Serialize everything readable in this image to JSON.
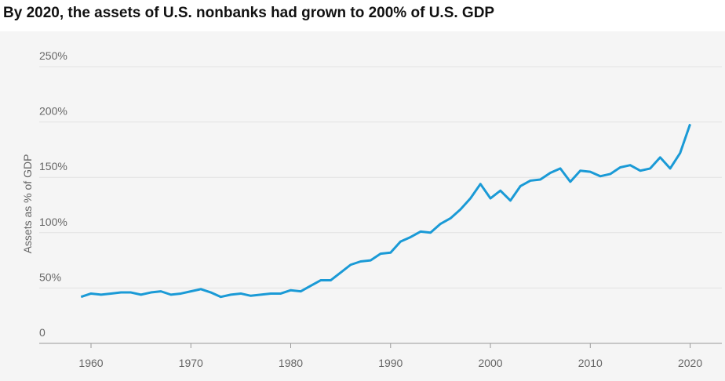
{
  "chart_data": {
    "type": "line",
    "title": "By 2020, the assets of U.S. nonbanks had grown to 200% of U.S. GDP",
    "y_label": "Assets as % of GDP",
    "x": [
      1959,
      1960,
      1961,
      1962,
      1963,
      1964,
      1965,
      1966,
      1967,
      1968,
      1969,
      1970,
      1971,
      1972,
      1973,
      1974,
      1975,
      1976,
      1977,
      1978,
      1979,
      1980,
      1981,
      1982,
      1983,
      1984,
      1985,
      1986,
      1987,
      1988,
      1989,
      1990,
      1991,
      1992,
      1993,
      1994,
      1995,
      1996,
      1997,
      1998,
      1999,
      2000,
      2001,
      2002,
      2003,
      2004,
      2005,
      2006,
      2007,
      2008,
      2009,
      2010,
      2011,
      2012,
      2013,
      2014,
      2015,
      2016,
      2017,
      2018,
      2019,
      2020
    ],
    "series": [
      {
        "name": "Assets as % of GDP",
        "color": "#1a9ad6",
        "values": [
          42,
          45,
          44,
          45,
          46,
          46,
          44,
          46,
          47,
          44,
          45,
          47,
          49,
          46,
          42,
          44,
          45,
          43,
          44,
          45,
          45,
          48,
          47,
          52,
          57,
          57,
          64,
          71,
          74,
          75,
          81,
          82,
          92,
          96,
          101,
          100,
          108,
          113,
          121,
          131,
          144,
          131,
          138,
          129,
          142,
          147,
          148,
          154,
          158,
          146,
          156,
          155,
          151,
          153,
          159,
          161,
          156,
          158,
          168,
          158,
          172,
          198
        ]
      }
    ],
    "xlim": [
      1955.6,
      2022
    ],
    "xticks": [
      1960,
      1970,
      1980,
      1990,
      2000,
      2010,
      2020
    ],
    "ylim": [
      0,
      250
    ],
    "yticks": [
      0,
      {
        "value": 50,
        "label": "50%"
      },
      {
        "value": 100,
        "label": "100%"
      },
      {
        "value": 150,
        "label": "150%"
      },
      {
        "value": 200,
        "label": "200%"
      },
      {
        "value": 250,
        "label": "250%"
      }
    ],
    "grid": true
  }
}
